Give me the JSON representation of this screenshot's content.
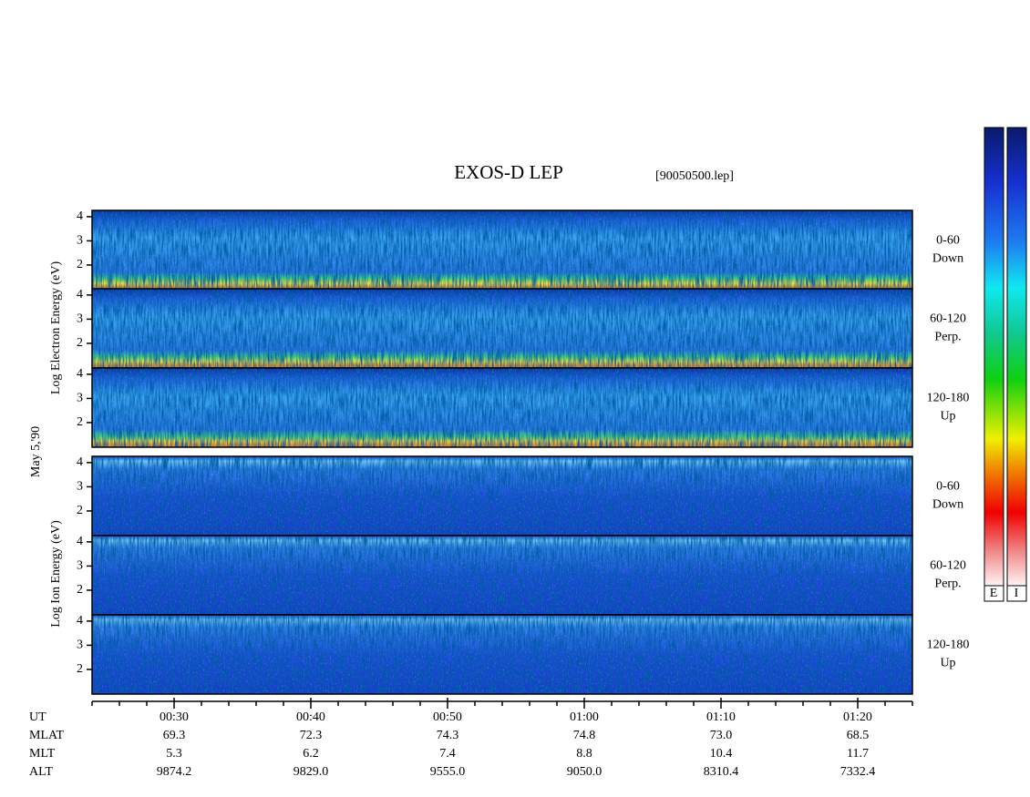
{
  "chart_data": {
    "type": "spectrogram",
    "title": "EXOS-D LEP",
    "subtitle": "[90050500.lep]",
    "date": "May 5,'90",
    "electron_label": "Log Electron Energy (eV)",
    "ion_label": "Log Ion Energy (eV)",
    "panel_labels": [
      [
        "0-60",
        "Down"
      ],
      [
        "60-120",
        "Perp."
      ],
      [
        "120-180",
        "Up"
      ],
      [
        "0-60",
        "Down"
      ],
      [
        "60-120",
        "Perp."
      ],
      [
        "120-180",
        "Up"
      ]
    ],
    "ylim": [
      0.98,
      4.26
    ],
    "yticks": [
      2,
      3,
      4
    ],
    "xlim": [
      24,
      84
    ],
    "xticks": [
      {
        "value": 30,
        "label": "00:30"
      },
      {
        "value": 40,
        "label": "00:40"
      },
      {
        "value": 50,
        "label": "00:50"
      },
      {
        "value": 60,
        "label": "01:00"
      },
      {
        "value": 70,
        "label": "01:10"
      },
      {
        "value": 80,
        "label": "01:20"
      }
    ],
    "xminorticks": [
      24,
      26,
      28,
      32,
      34,
      36,
      38,
      42,
      44,
      46,
      48,
      52,
      54,
      56,
      58,
      62,
      64,
      66,
      68,
      72,
      74,
      76,
      78,
      82,
      84
    ],
    "orbit": {
      "row_labels": [
        "UT",
        "MLAT",
        "MLT",
        "ALT"
      ],
      "rows": [
        [
          "69.3",
          "72.3",
          "74.3",
          "74.8",
          "73.0",
          "68.5"
        ],
        [
          "5.3",
          "6.2",
          "7.4",
          "8.8",
          "10.4",
          "11.7"
        ],
        [
          "9874.2",
          "9829.0",
          "9555.0",
          "9050.0",
          "8310.4",
          "7332.4"
        ]
      ]
    },
    "colorbar_labels": [
      "E",
      "I"
    ]
  }
}
